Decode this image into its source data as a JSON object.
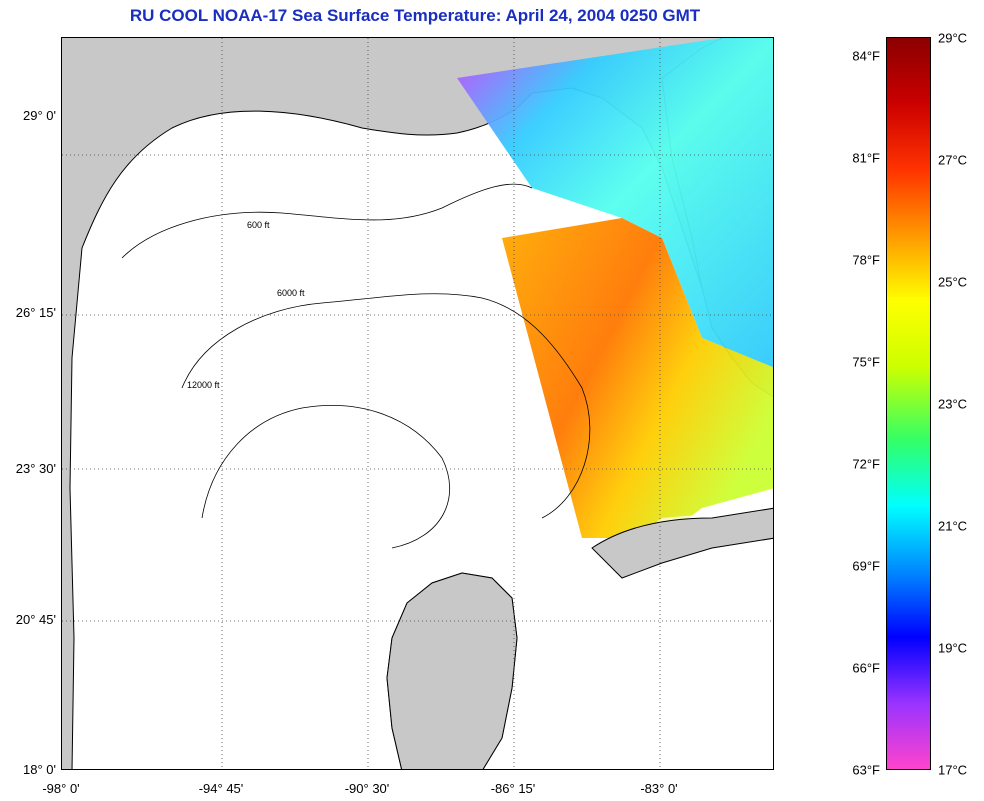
{
  "title": "RU COOL  NOAA-17  Sea Surface Temperature:  April 24, 2004 0250 GMT",
  "y_ticks": [
    "29° 0'",
    "26° 15'",
    "23° 30'",
    "20° 45'",
    "18° 0'"
  ],
  "x_ticks": [
    "-98° 0'",
    "-94° 45'",
    "-90° 30'",
    "-86° 15'",
    "-83° 0'"
  ],
  "colorbar": {
    "fahrenheit": [
      "84°F",
      "81°F",
      "78°F",
      "75°F",
      "72°F",
      "69°F",
      "66°F",
      "63°F"
    ],
    "celsius": [
      "29°C",
      "27°C",
      "25°C",
      "23°C",
      "21°C",
      "19°C",
      "17°C"
    ],
    "range_c": [
      17,
      29
    ],
    "colors": [
      "#ff44cc",
      "#9933ff",
      "#0000ff",
      "#0088ff",
      "#00ffff",
      "#33ff66",
      "#ccff00",
      "#ffff00",
      "#ff9900",
      "#ff3300",
      "#cc0000",
      "#8b0000"
    ]
  },
  "contour_labels": [
    "600 ft",
    "6000 ft",
    "12000 ft"
  ],
  "colors": {
    "land": "#c8c8c8",
    "sea": "#ffffff",
    "title": "#1a2fbf",
    "grid": "#444444"
  }
}
